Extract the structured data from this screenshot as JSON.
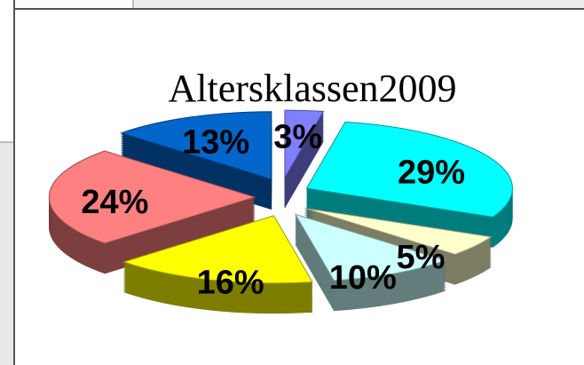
{
  "chart_data": {
    "type": "pie",
    "title": "Altersklassen2009",
    "values": [
      3,
      29,
      5,
      10,
      16,
      24,
      13
    ],
    "value_labels": [
      "3%",
      "29%",
      "5%",
      "10%",
      "16%",
      "24%",
      "13%"
    ],
    "colors": [
      "#8080ff",
      "#00ffff",
      "#ffffcc",
      "#ccffff",
      "#ffff00",
      "#ff8080",
      "#0066cc"
    ]
  }
}
